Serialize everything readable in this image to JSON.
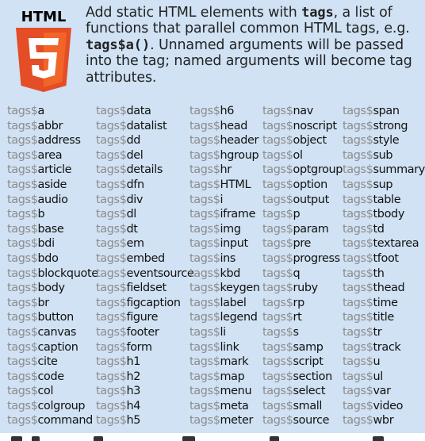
{
  "logo": {
    "wordmark": "HTML",
    "shield_color": "#e44d26",
    "shield_highlight": "#f16529",
    "five_color": "#ffffff",
    "wordmark_color": "#000000"
  },
  "intro": {
    "t1": "Add static HTML elements with ",
    "code1": "tags",
    "t2": ", a list of functions that parallel common HTML tags, e.g. ",
    "code2": "tags$a()",
    "t3": ". Unnamed arguments will be passed into the tag; named arguments will become tag attributes."
  },
  "prefix": "tags$",
  "columns": [
    [
      "a",
      "abbr",
      "address",
      "area",
      "article",
      "aside",
      "audio",
      "b",
      "base",
      "bdi",
      "bdo",
      "blockquote",
      "body",
      "br",
      "button",
      "canvas",
      "caption",
      "cite",
      "code",
      "col",
      "colgroup",
      "command"
    ],
    [
      "data",
      "datalist",
      "dd",
      "del",
      "details",
      "dfn",
      "div",
      "dl",
      "dt",
      "em",
      "embed",
      "eventsource",
      "fieldset",
      "figcaption",
      "figure",
      "footer",
      "form",
      "h1",
      "h2",
      "h3",
      "h4",
      "h5"
    ],
    [
      "h6",
      "head",
      "header",
      "hgroup",
      "hr",
      "HTML",
      "i",
      "iframe",
      "img",
      "input",
      "ins",
      "kbd",
      "keygen",
      "label",
      "legend",
      "li",
      "link",
      "mark",
      "map",
      "menu",
      "meta",
      "meter"
    ],
    [
      "nav",
      "noscript",
      "object",
      "ol",
      "optgroup",
      "option",
      "output",
      "p",
      "param",
      "pre",
      "progress",
      "q",
      "ruby",
      "rp",
      "rt",
      "s",
      "samp",
      "script",
      "section",
      "select",
      "small",
      "source"
    ],
    [
      "span",
      "strong",
      "style",
      "sub",
      "summary",
      "sup",
      "table",
      "tbody",
      "td",
      "textarea",
      "tfoot",
      "th",
      "thead",
      "time",
      "title",
      "tr",
      "track",
      "u",
      "ul",
      "var",
      "video",
      "wbr"
    ]
  ],
  "colors": {
    "panel_bg": "#d0e2f3",
    "prefix_text": "#8c8c8c",
    "name_text": "#111111"
  }
}
